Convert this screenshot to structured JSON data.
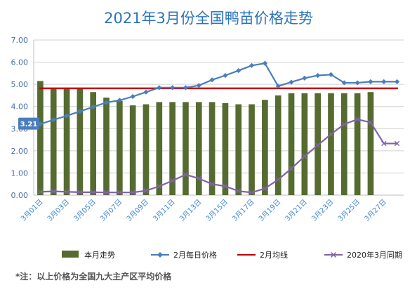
{
  "chart_data": {
    "type": "bar+line",
    "title": "2021年3月份全国鸭苗价格走势",
    "ylim": [
      0,
      7
    ],
    "yticks": [
      "0.00",
      "1.00",
      "2.00",
      "3.00",
      "4.00",
      "5.00",
      "6.00",
      "7.00"
    ],
    "grid": true,
    "x_days": [
      1,
      2,
      3,
      4,
      5,
      6,
      7,
      8,
      9,
      10,
      11,
      12,
      13,
      14,
      15,
      16,
      17,
      18,
      19,
      20,
      21,
      22,
      23,
      24,
      25,
      26,
      27,
      28
    ],
    "x_tick_labels": [
      "3月01日",
      "3月03日",
      "3月05日",
      "3月07日",
      "3月09日",
      "3月11日",
      "3月13日",
      "3月15日",
      "3月17日",
      "3月19日",
      "3月21日",
      "3月23日",
      "3月25日",
      "3月27日"
    ],
    "x_tick_days": [
      1,
      3,
      5,
      7,
      9,
      11,
      13,
      15,
      17,
      19,
      21,
      23,
      25,
      27
    ],
    "series": [
      {
        "name": "本月走势",
        "kind": "bar",
        "color": "#556b2f",
        "values": [
          5.15,
          4.8,
          4.8,
          4.8,
          4.65,
          4.4,
          4.25,
          4.05,
          4.1,
          4.2,
          4.2,
          4.2,
          4.2,
          4.2,
          4.15,
          4.1,
          4.1,
          4.3,
          4.5,
          4.6,
          4.6,
          4.6,
          4.6,
          4.6,
          4.6,
          4.65
        ]
      },
      {
        "name": "2月每日价格",
        "kind": "line",
        "color": "#4a7ebb",
        "marker": "diamond",
        "values": [
          3.21,
          3.4,
          3.58,
          3.78,
          3.98,
          4.18,
          4.28,
          4.45,
          4.65,
          4.85,
          4.85,
          4.85,
          4.95,
          5.2,
          5.4,
          5.62,
          5.85,
          5.95,
          4.92,
          5.1,
          5.28,
          5.4,
          5.44,
          5.07,
          5.07,
          5.12,
          5.12,
          5.12
        ]
      },
      {
        "name": "2月均线",
        "kind": "hline",
        "color": "#c00000",
        "value": 4.82
      },
      {
        "name": "2020年3月同期",
        "kind": "line",
        "color": "#8064a2",
        "marker": "x",
        "values": [
          0.15,
          0.17,
          0.15,
          0.13,
          0.13,
          0.12,
          0.12,
          0.12,
          0.2,
          0.4,
          0.65,
          0.93,
          0.75,
          0.5,
          0.4,
          0.18,
          0.12,
          0.3,
          0.7,
          1.2,
          1.75,
          2.25,
          2.75,
          3.2,
          3.42,
          3.28,
          2.33,
          2.33
        ]
      }
    ],
    "callout": "3.21",
    "legend_position": "bottom"
  },
  "note": "*注：以上价格为全国九大主产区平均价格"
}
